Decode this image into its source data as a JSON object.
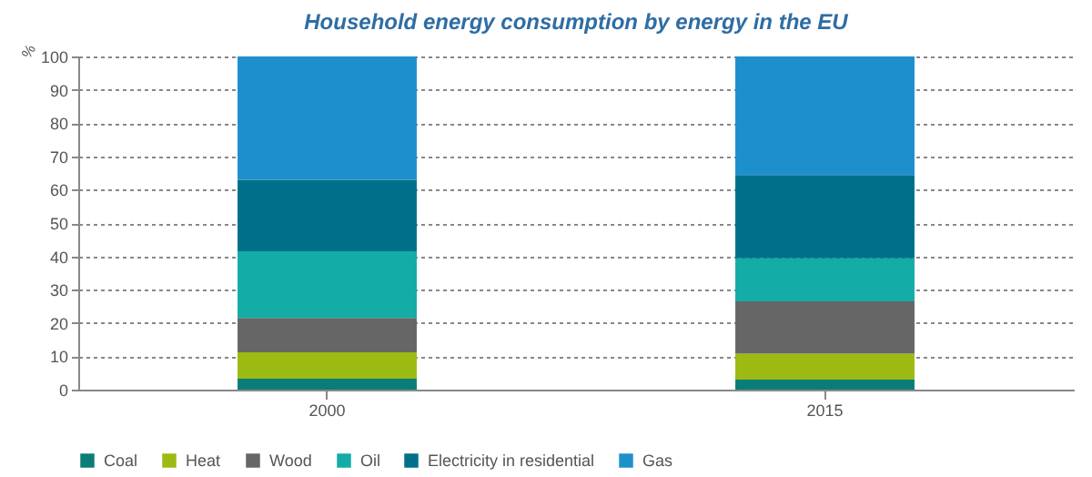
{
  "chart_data": {
    "type": "bar",
    "title": "Household energy consumption by energy in the EU",
    "ylabel": "%",
    "categories": [
      "2000",
      "2015"
    ],
    "stacked": true,
    "series": [
      {
        "name": "Coal",
        "color": "#0b7d78",
        "values": [
          3.3,
          3.0
        ]
      },
      {
        "name": "Heat",
        "color": "#9bbb12",
        "values": [
          7.9,
          7.8
        ]
      },
      {
        "name": "Wood",
        "color": "#666666",
        "values": [
          10.3,
          15.7
        ]
      },
      {
        "name": "Oil",
        "color": "#13aca6",
        "values": [
          20.0,
          12.9
        ]
      },
      {
        "name": "Electricity in residential",
        "color": "#00708a",
        "values": [
          21.5,
          25.0
        ]
      },
      {
        "name": "Gas",
        "color": "#1d90cc",
        "values": [
          37.0,
          35.6
        ]
      }
    ],
    "ylim": [
      0,
      100
    ],
    "yticks": [
      0,
      10,
      20,
      30,
      40,
      50,
      60,
      70,
      80,
      90,
      100
    ],
    "grid": "y",
    "legend": "bottom"
  }
}
